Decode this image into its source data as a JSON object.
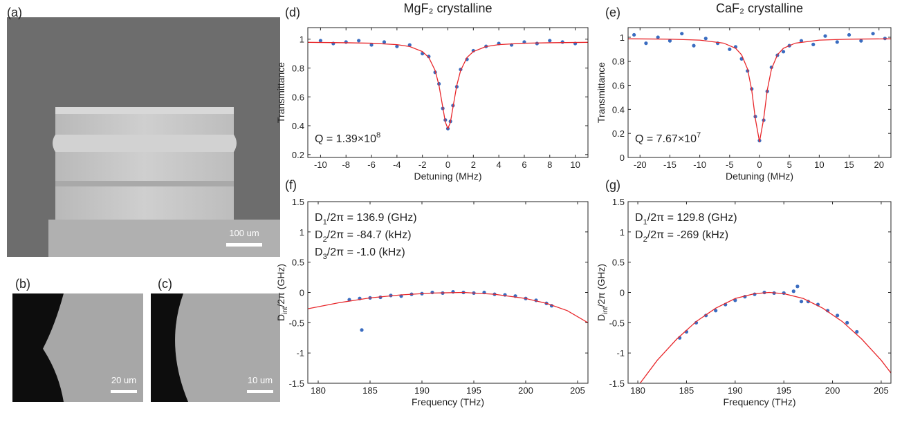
{
  "images": [
    {
      "label": "(a)",
      "scale_bar": "100 um"
    },
    {
      "label": "(b)",
      "scale_bar": "20 um"
    },
    {
      "label": "(c)",
      "scale_bar": "10 um"
    }
  ],
  "chart_data": [
    {
      "label": "(d)",
      "type": "scatter",
      "title": "MgF₂ crystalline",
      "xlabel": "Detuning (MHz)",
      "ylabel": "Transmittance",
      "xlim": [
        -11,
        11
      ],
      "xticks": [
        -10,
        -8,
        -6,
        -4,
        -2,
        0,
        2,
        4,
        6,
        8,
        10
      ],
      "ylim": [
        0.18,
        1.08
      ],
      "yticks": [
        0.2,
        0.4,
        0.6,
        0.8,
        1
      ],
      "annotations": [
        {
          "base": "Q = 1.39×10",
          "sup": "8"
        }
      ],
      "series": [
        {
          "style": "scatter",
          "color": "#3a6cc0",
          "x": [
            -10,
            -9,
            -8,
            -7,
            -6,
            -5,
            -4,
            -3,
            -2,
            -1.5,
            -1,
            -0.7,
            -0.4,
            -0.2,
            0,
            0.2,
            0.4,
            0.7,
            1,
            1.5,
            2,
            3,
            4,
            5,
            6,
            7,
            8,
            9,
            10
          ],
          "values": [
            0.99,
            0.97,
            0.98,
            0.99,
            0.96,
            0.98,
            0.95,
            0.96,
            0.9,
            0.88,
            0.77,
            0.69,
            0.52,
            0.44,
            0.38,
            0.43,
            0.54,
            0.67,
            0.79,
            0.86,
            0.92,
            0.95,
            0.97,
            0.96,
            0.98,
            0.97,
            0.99,
            0.98,
            0.97
          ]
        },
        {
          "style": "line",
          "color": "#e8262a",
          "x": [
            -11,
            -8,
            -6,
            -4,
            -3,
            -2,
            -1.5,
            -1,
            -0.7,
            -0.4,
            -0.2,
            0,
            0.2,
            0.4,
            0.7,
            1,
            1.5,
            2,
            3,
            4,
            6,
            8,
            11
          ],
          "values": [
            0.978,
            0.975,
            0.972,
            0.962,
            0.949,
            0.914,
            0.873,
            0.783,
            0.68,
            0.528,
            0.425,
            0.38,
            0.425,
            0.528,
            0.68,
            0.783,
            0.873,
            0.914,
            0.949,
            0.962,
            0.972,
            0.975,
            0.978
          ]
        }
      ]
    },
    {
      "label": "(e)",
      "type": "scatter",
      "title": "CaF₂ crystalline",
      "xlabel": "Detuning (MHz)",
      "ylabel": "Transmittance",
      "xlim": [
        -22,
        22
      ],
      "xticks": [
        -20,
        -15,
        -10,
        -5,
        0,
        5,
        10,
        15,
        20
      ],
      "ylim": [
        0,
        1.08
      ],
      "yticks": [
        0,
        0.2,
        0.4,
        0.6,
        0.8,
        1
      ],
      "annotations": [
        {
          "base": "Q = 7.67×10",
          "sup": "7"
        }
      ],
      "series": [
        {
          "style": "scatter",
          "color": "#3a6cc0",
          "x": [
            -21,
            -19,
            -17,
            -15,
            -13,
            -11,
            -9,
            -7,
            -5,
            -4,
            -3,
            -2,
            -1.3,
            -0.7,
            0,
            0.7,
            1.3,
            2,
            3,
            4,
            5,
            7,
            9,
            11,
            13,
            15,
            17,
            19,
            21
          ],
          "values": [
            1.02,
            0.95,
            1.0,
            0.97,
            1.03,
            0.93,
            0.99,
            0.95,
            0.9,
            0.92,
            0.82,
            0.72,
            0.57,
            0.34,
            0.14,
            0.31,
            0.55,
            0.75,
            0.85,
            0.88,
            0.93,
            0.97,
            0.94,
            1.01,
            0.96,
            1.02,
            0.97,
            1.03,
            0.99
          ]
        },
        {
          "style": "line",
          "color": "#e8262a",
          "x": [
            -22,
            -15,
            -10,
            -6,
            -4,
            -3,
            -2,
            -1.3,
            -0.7,
            0,
            0.7,
            1.3,
            2,
            3,
            4,
            6,
            10,
            15,
            22
          ],
          "values": [
            0.987,
            0.984,
            0.976,
            0.951,
            0.908,
            0.854,
            0.735,
            0.56,
            0.323,
            0.13,
            0.323,
            0.56,
            0.735,
            0.854,
            0.908,
            0.951,
            0.976,
            0.984,
            0.987
          ]
        }
      ]
    },
    {
      "label": "(f)",
      "type": "scatter",
      "xlabel": "Frequency (THz)",
      "ylabel": {
        "base": "D",
        "sub": "int",
        "rest": "/2π (GHz)"
      },
      "xlim": [
        179,
        206
      ],
      "xticks": [
        180,
        185,
        190,
        195,
        200,
        205
      ],
      "ylim": [
        -1.5,
        1.5
      ],
      "yticks": [
        -1.5,
        -1,
        -0.5,
        0,
        0.5,
        1,
        1.5
      ],
      "annotations": [
        {
          "base": "D",
          "sub": "1",
          "rest": "/2π = 136.9 (GHz)"
        },
        {
          "base": "D",
          "sub": "2",
          "rest": "/2π = -84.7 (kHz)"
        },
        {
          "base": "D",
          "sub": "3",
          "rest": "/2π = -1.0 (kHz)"
        }
      ],
      "series": [
        {
          "style": "scatter",
          "color": "#3a6cc0",
          "x": [
            183,
            184,
            185,
            186,
            187,
            188,
            189,
            190,
            191,
            192,
            193,
            194,
            195,
            196,
            197,
            198,
            199,
            200,
            201,
            202,
            202.5,
            184.2
          ],
          "values": [
            -0.12,
            -0.1,
            -0.09,
            -0.08,
            -0.05,
            -0.06,
            -0.03,
            -0.02,
            0,
            -0.01,
            0.01,
            0,
            -0.01,
            0,
            -0.03,
            -0.04,
            -0.06,
            -0.1,
            -0.13,
            -0.18,
            -0.22,
            -0.62
          ]
        },
        {
          "style": "line",
          "color": "#e8262a",
          "x": [
            179,
            182,
            185,
            188,
            191,
            194,
            197,
            200,
            202,
            204,
            206
          ],
          "values": [
            -0.27,
            -0.17,
            -0.09,
            -0.04,
            -0.01,
            0,
            -0.03,
            -0.1,
            -0.18,
            -0.3,
            -0.5
          ]
        }
      ]
    },
    {
      "label": "(g)",
      "type": "scatter",
      "xlabel": "Frequency (THz)",
      "ylabel": {
        "base": "D",
        "sub": "int",
        "rest": "/2π (GHz)"
      },
      "xlim": [
        179,
        206
      ],
      "xticks": [
        180,
        185,
        190,
        195,
        200,
        205
      ],
      "ylim": [
        -1.5,
        1.5
      ],
      "yticks": [
        -1.5,
        -1,
        -0.5,
        0,
        0.5,
        1,
        1.5
      ],
      "annotations": [
        {
          "base": "D",
          "sub": "1",
          "rest": "/2π = 129.8 (GHz)"
        },
        {
          "base": "D",
          "sub": "2",
          "rest": "/2π = -269 (kHz)"
        }
      ],
      "series": [
        {
          "style": "scatter",
          "color": "#3a6cc0",
          "x": [
            184.3,
            185,
            186,
            187,
            188,
            189,
            190,
            191,
            192,
            193,
            194,
            195,
            196,
            196.4,
            196.8,
            197.5,
            198.5,
            199.5,
            200.5,
            201.5,
            202.5
          ],
          "values": [
            -0.75,
            -0.65,
            -0.5,
            -0.38,
            -0.3,
            -0.2,
            -0.13,
            -0.07,
            -0.03,
            0,
            -0.01,
            -0.01,
            0.02,
            0.1,
            -0.15,
            -0.15,
            -0.2,
            -0.3,
            -0.38,
            -0.5,
            -0.65
          ]
        },
        {
          "style": "line",
          "color": "#e8262a",
          "x": [
            180,
            182,
            184,
            186,
            188,
            190,
            192,
            193.5,
            195,
            197,
            199,
            201,
            203,
            205,
            206
          ],
          "values": [
            -1.55,
            -1.12,
            -0.77,
            -0.48,
            -0.26,
            -0.1,
            -0.02,
            0,
            -0.02,
            -0.1,
            -0.26,
            -0.48,
            -0.77,
            -1.12,
            -1.33
          ]
        }
      ]
    }
  ]
}
